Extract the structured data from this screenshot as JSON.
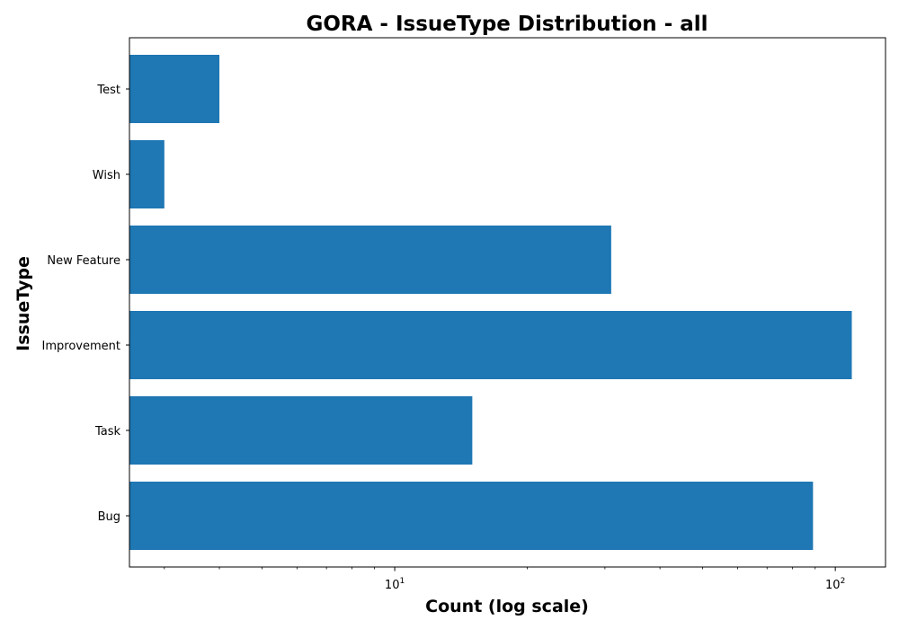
{
  "chart_data": {
    "type": "bar",
    "orientation": "horizontal",
    "title": "GORA - IssueType Distribution - all",
    "xlabel": "Count (log scale)",
    "ylabel": "IssueType",
    "x_scale": "log",
    "xlim": [
      2.5,
      130
    ],
    "categories": [
      "Bug",
      "Task",
      "Improvement",
      "New Feature",
      "Wish",
      "Test"
    ],
    "values": [
      89,
      15,
      109,
      31,
      3,
      4
    ],
    "x_ticks": [
      {
        "value": 10,
        "base": "10",
        "exp": "1"
      },
      {
        "value": 100,
        "base": "10",
        "exp": "2"
      }
    ],
    "bar_color": "#1f77b4",
    "grid": false,
    "legend": "none"
  }
}
